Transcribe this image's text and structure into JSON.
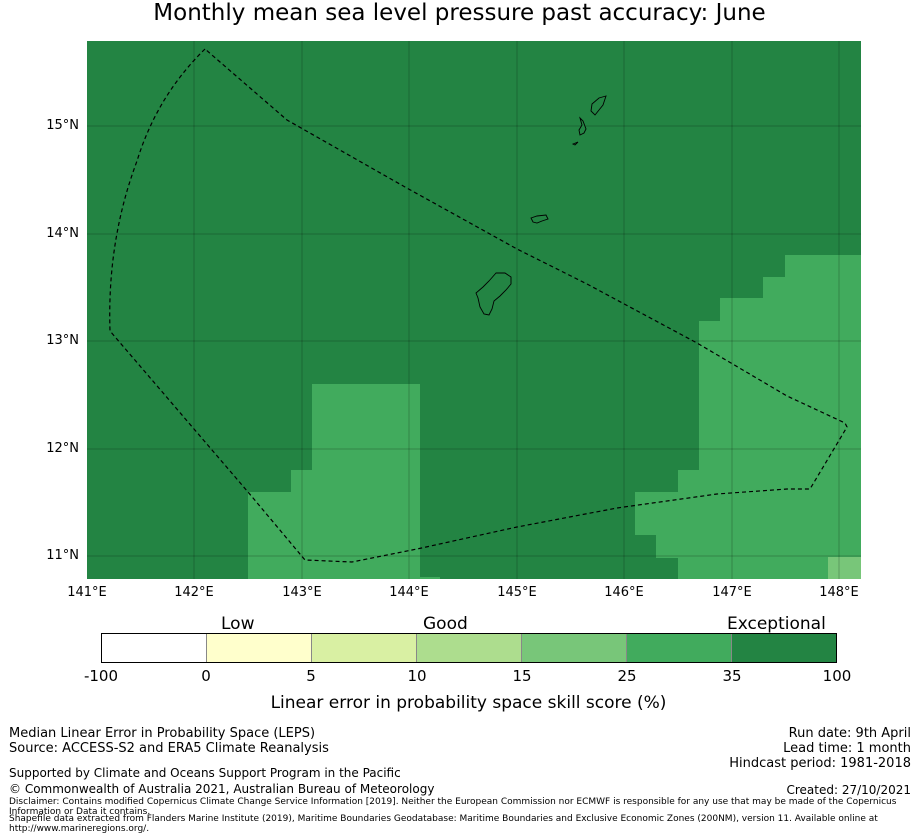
{
  "title": "Monthly mean sea level pressure past accuracy: June",
  "map": {
    "lat_labels": [
      "15°N",
      "14°N",
      "13°N",
      "12°N",
      "11°N"
    ],
    "lon_labels": [
      "141°E",
      "142°E",
      "143°E",
      "144°E",
      "145°E",
      "146°E",
      "147°E",
      "148°E"
    ],
    "extent": {
      "lon_min": 141.0,
      "lon_max": 148.2,
      "lat_min": 10.8,
      "lat_max": 15.8
    },
    "colors": {
      "exceptional": "#238443",
      "good_upper": "#41ab5d",
      "good_mid": "#78c679"
    }
  },
  "legend": {
    "categories": [
      "Low",
      "Good",
      "Exceptional"
    ],
    "colors": [
      "#ffffff",
      "#ffffcc",
      "#d9f0a3",
      "#addd8e",
      "#78c679",
      "#41ab5d",
      "#238443"
    ],
    "ticks": [
      "-100",
      "0",
      "5",
      "10",
      "15",
      "25",
      "35",
      "100"
    ],
    "label": "Linear error in probability space skill score (%)"
  },
  "footer": {
    "line1": "Median Linear Error in Probability Space (LEPS)",
    "line2": "Source: ACCESS-S2 and ERA5 Climate Reanalysis",
    "support": "Supported by Climate and Oceans Support Program in the Pacific",
    "copyright": "© Commonwealth of Australia 2021, Australian Bureau of Meteorology",
    "disclaimer": "Disclaimer: Contains modified Copernicus Climate Change Service Information [2019]. Neither the European Commission nor ECMWF is responsible for any use that may be made of the Copernicus Information or Data it contains.",
    "shapefile": "Shapefile data extracted from Flanders Marine Institute (2019), Maritime Boundaries Geodatabase: Maritime Boundaries and Exclusive Economic Zones (200NM), version 11. Available online at http://www.marineregions.org/.",
    "run_date": "Run date: 9th April",
    "lead_time": "Lead time: 1 month",
    "hindcast": "Hindcast period: 1981-2018",
    "created": "Created: 27/10/2021"
  }
}
